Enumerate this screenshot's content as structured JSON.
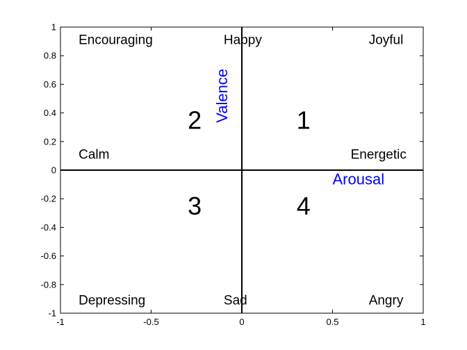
{
  "chart_data": {
    "type": "scatter",
    "title": "",
    "xlim": [
      -1,
      1
    ],
    "ylim": [
      -1,
      1
    ],
    "grid": false,
    "x_ticks": [
      {
        "value": -1,
        "label": "-1"
      },
      {
        "value": -0.5,
        "label": "-0.5"
      },
      {
        "value": 0,
        "label": "0"
      },
      {
        "value": 0.5,
        "label": "0.5"
      },
      {
        "value": 1,
        "label": "1"
      }
    ],
    "y_ticks": [
      {
        "value": -1,
        "label": "-1"
      },
      {
        "value": -0.8,
        "label": "-0.8"
      },
      {
        "value": -0.6,
        "label": "-0.6"
      },
      {
        "value": -0.4,
        "label": "-0.4"
      },
      {
        "value": -0.2,
        "label": "-0.2"
      },
      {
        "value": 0,
        "label": "0"
      },
      {
        "value": 0.2,
        "label": "0.2"
      },
      {
        "value": 0.4,
        "label": "0.4"
      },
      {
        "value": 0.6,
        "label": "0.6"
      },
      {
        "value": 0.8,
        "label": "0.8"
      },
      {
        "value": 1,
        "label": "1"
      }
    ],
    "axis_lines": {
      "x_at": 0,
      "y_at": 0
    },
    "arousal_label": {
      "text": "Arousal",
      "x": 0.5,
      "y": -0.1,
      "color": "#0000FF"
    },
    "valence_label": {
      "text": "Valence",
      "x": -0.08,
      "y": 0.52,
      "color": "#0000FF"
    },
    "region_labels": [
      {
        "text": "Encouraging",
        "x": -0.9,
        "y": 0.88
      },
      {
        "text": "Happy",
        "x": -0.1,
        "y": 0.88
      },
      {
        "text": "Joyful",
        "x": 0.7,
        "y": 0.88
      },
      {
        "text": "Calm",
        "x": -0.9,
        "y": 0.08
      },
      {
        "text": "Energetic",
        "x": 0.6,
        "y": 0.08
      },
      {
        "text": "Depressing",
        "x": -0.9,
        "y": -0.94
      },
      {
        "text": "Sad",
        "x": -0.1,
        "y": -0.94
      },
      {
        "text": "Angry",
        "x": 0.7,
        "y": -0.94
      }
    ],
    "quadrant_labels": [
      {
        "text": "1",
        "x": 0.34,
        "y": 0.29
      },
      {
        "text": "2",
        "x": -0.26,
        "y": 0.29
      },
      {
        "text": "3",
        "x": -0.26,
        "y": -0.31
      },
      {
        "text": "4",
        "x": 0.34,
        "y": -0.31
      }
    ]
  }
}
